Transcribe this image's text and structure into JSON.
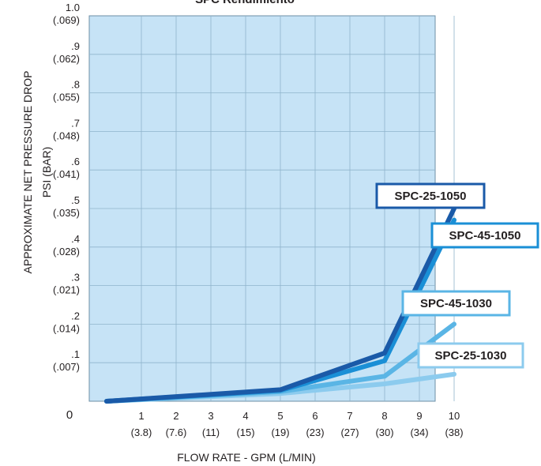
{
  "chart_data": {
    "type": "line",
    "title": "SPC Rendimiento",
    "xlabel": "FLOW RATE - GPM (L/MIN)",
    "ylabel_line1": "APPROXIMATE NET PRESSURE DROP",
    "ylabel_line2": "PSI (BAR)",
    "origin_label": "0",
    "xlim": [
      0,
      10
    ],
    "ylim": [
      0,
      1.0
    ],
    "grid": true,
    "x_ticks": [
      {
        "value": 1,
        "label": "1",
        "sub": "(3.8)"
      },
      {
        "value": 2,
        "label": "2",
        "sub": "(7.6)"
      },
      {
        "value": 3,
        "label": "3",
        "sub": "(11)"
      },
      {
        "value": 4,
        "label": "4",
        "sub": "(15)"
      },
      {
        "value": 5,
        "label": "5",
        "sub": "(19)"
      },
      {
        "value": 6,
        "label": "6",
        "sub": "(23)"
      },
      {
        "value": 7,
        "label": "7",
        "sub": "(27)"
      },
      {
        "value": 8,
        "label": "8",
        "sub": "(30)"
      },
      {
        "value": 9,
        "label": "9",
        "sub": "(34)"
      },
      {
        "value": 10,
        "label": "10",
        "sub": "(38)"
      }
    ],
    "y_ticks": [
      {
        "value": 0.1,
        "label": ".1",
        "sub": "(.007)"
      },
      {
        "value": 0.2,
        "label": ".2",
        "sub": "(.014)"
      },
      {
        "value": 0.3,
        "label": ".3",
        "sub": "(.021)"
      },
      {
        "value": 0.4,
        "label": ".4",
        "sub": "(.028)"
      },
      {
        "value": 0.5,
        "label": ".5",
        "sub": "(.035)"
      },
      {
        "value": 0.6,
        "label": ".6",
        "sub": "(.041)"
      },
      {
        "value": 0.7,
        "label": ".7",
        "sub": "(.048)"
      },
      {
        "value": 0.8,
        "label": ".8",
        "sub": "(.055)"
      },
      {
        "value": 0.9,
        "label": ".9",
        "sub": "(.062)"
      },
      {
        "value": 1.0,
        "label": "1.0",
        "sub": "(.069)"
      }
    ],
    "series": [
      {
        "name": "SPC-25-1030",
        "color": "#8ccbee",
        "label_anchor": "end",
        "x": [
          0,
          5,
          8,
          10
        ],
        "y": [
          0,
          0.02,
          0.045,
          0.07
        ]
      },
      {
        "name": "SPC-45-1030",
        "color": "#5ab5e5",
        "label_anchor": "end",
        "x": [
          0,
          5,
          8,
          10
        ],
        "y": [
          0,
          0.025,
          0.065,
          0.2
        ]
      },
      {
        "name": "SPC-45-1050",
        "color": "#1a8fd6",
        "label_anchor": "end",
        "x": [
          0,
          5,
          8,
          10
        ],
        "y": [
          0,
          0.028,
          0.105,
          0.47
        ]
      },
      {
        "name": "SPC-25-1050",
        "color": "#1a5aa8",
        "label_anchor": "end",
        "x": [
          0,
          5,
          8,
          10
        ],
        "y": [
          0,
          0.03,
          0.125,
          0.5
        ]
      }
    ]
  }
}
